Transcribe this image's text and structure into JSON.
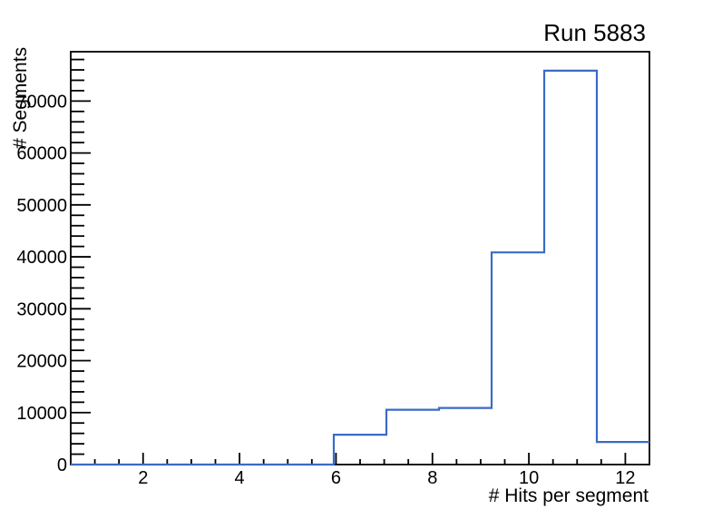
{
  "chart_data": {
    "type": "histogram",
    "title": "Run 5883",
    "xlabel": "# Hits per segment",
    "ylabel": "# Segments",
    "xlim": [
      0.5,
      12.5
    ],
    "ylim": [
      0,
      79500
    ],
    "n_bins": 11,
    "bin_edges": [
      0.5,
      1.591,
      2.682,
      3.773,
      4.864,
      5.955,
      7.045,
      8.136,
      9.227,
      10.318,
      11.409,
      12.5
    ],
    "counts": [
      0,
      0,
      0,
      0,
      0,
      5750,
      10550,
      10900,
      40850,
      75850,
      4350
    ],
    "x_major_ticks": [
      2,
      4,
      6,
      8,
      10,
      12
    ],
    "x_minor_tick_step": 0.5,
    "y_major_ticks": [
      0,
      10000,
      20000,
      30000,
      40000,
      50000,
      60000,
      70000
    ],
    "y_minor_tick_step": 2000,
    "grid": false,
    "legend": null,
    "tick_style": "inside",
    "line_color": "#3a6bc5",
    "axis_color": "#000000",
    "background_color": "#ffffff"
  }
}
